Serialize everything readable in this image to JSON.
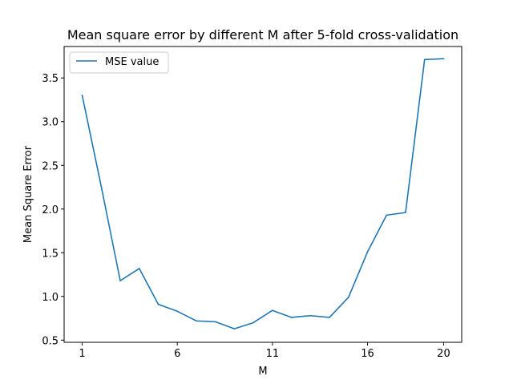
{
  "chart_data": {
    "type": "line",
    "title": "Mean square error by different M after 5-fold cross-validation",
    "xlabel": "M",
    "ylabel": "Mean Square Error",
    "xlim": [
      0.05,
      20.95
    ],
    "ylim": [
      0.475,
      3.86
    ],
    "xticks": [
      1,
      6,
      11,
      16,
      20
    ],
    "yticks": [
      0.5,
      1.0,
      1.5,
      2.0,
      2.5,
      3.0,
      3.5
    ],
    "ytick_labels": [
      "0.5",
      "1.0",
      "1.5",
      "2.0",
      "2.5",
      "3.0",
      "3.5"
    ],
    "grid": false,
    "legend_position": "top-left",
    "series": [
      {
        "name": "MSE value",
        "color": "#1f77b4",
        "x": [
          1,
          2,
          3,
          4,
          5,
          6,
          7,
          8,
          9,
          10,
          11,
          12,
          13,
          14,
          15,
          16,
          17,
          18,
          19,
          20
        ],
        "y": [
          3.3,
          2.26,
          1.18,
          1.32,
          0.91,
          0.83,
          0.72,
          0.71,
          0.63,
          0.7,
          0.84,
          0.76,
          0.78,
          0.76,
          0.99,
          1.51,
          1.93,
          1.96,
          3.71,
          3.72
        ]
      }
    ]
  }
}
